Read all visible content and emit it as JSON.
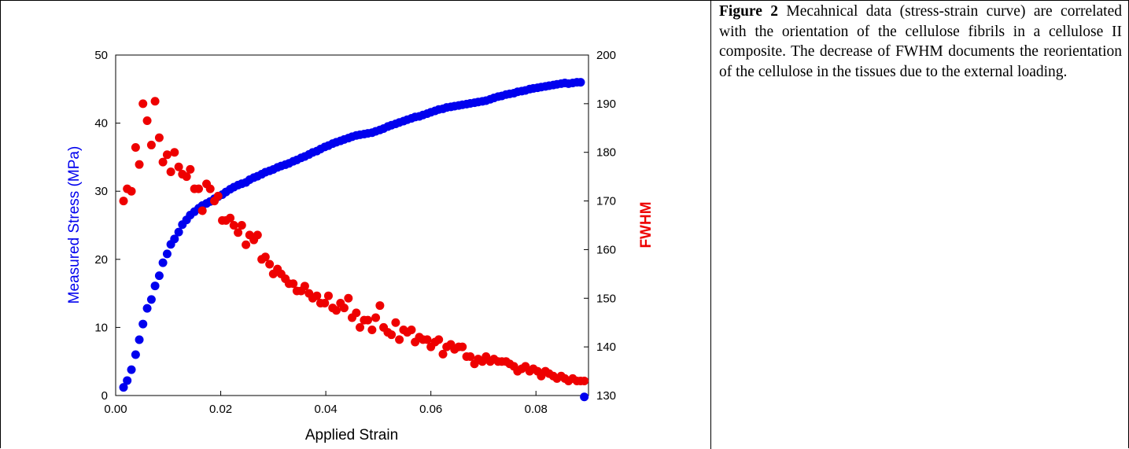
{
  "caption": {
    "label": "Figure 2",
    "text": "Mecahnical data (stress-strain curve) are correlated with the orientation of the cellulose fibrils in a cellulose II composite. The decrease of FWHM documents the reorientation of the cellulose in the tissues due to the external loading."
  },
  "colors": {
    "stress": "#0000ee",
    "fwhm": "#ee0000",
    "axes": "#000000"
  },
  "chart_data": {
    "type": "scatter",
    "xlabel": "Applied Strain",
    "ylabel_left": "Measured Stress (MPa)",
    "ylabel_right": "FWHM",
    "xlim": [
      0,
      0.09
    ],
    "ylim_left": [
      0,
      50
    ],
    "ylim_right": [
      130,
      200
    ],
    "xticks": [
      "0.00",
      "0.02",
      "0.04",
      "0.06",
      "0.08"
    ],
    "yticks_left": [
      "0",
      "10",
      "20",
      "30",
      "40",
      "50"
    ],
    "yticks_right": [
      "130",
      "140",
      "150",
      "160",
      "170",
      "180",
      "190",
      "200"
    ],
    "grid": false,
    "legend": "none",
    "series": [
      {
        "axis": "left",
        "points": [
          [
            0.0015,
            1.2
          ],
          [
            0.0022,
            2.2
          ],
          [
            0.003,
            3.8
          ],
          [
            0.0038,
            6
          ],
          [
            0.0045,
            8.2
          ],
          [
            0.0052,
            10.5
          ],
          [
            0.006,
            12.8
          ],
          [
            0.0068,
            14.1
          ],
          [
            0.0075,
            16.1
          ],
          [
            0.0083,
            17.6
          ],
          [
            0.009,
            19.5
          ],
          [
            0.0098,
            20.8
          ],
          [
            0.0105,
            22.2
          ],
          [
            0.0112,
            23
          ],
          [
            0.012,
            24
          ],
          [
            0.0127,
            25.1
          ],
          [
            0.0135,
            25.8
          ],
          [
            0.0142,
            26.5
          ],
          [
            0.015,
            27
          ],
          [
            0.0158,
            27.5
          ],
          [
            0.0165,
            27.9
          ],
          [
            0.0173,
            28.2
          ],
          [
            0.018,
            28.5
          ],
          [
            0.0188,
            28.9
          ],
          [
            0.0195,
            29.2
          ],
          [
            0.0203,
            29.5
          ],
          [
            0.021,
            29.9
          ],
          [
            0.0218,
            30.3
          ],
          [
            0.0225,
            30.6
          ],
          [
            0.0233,
            30.9
          ],
          [
            0.024,
            31.1
          ],
          [
            0.0248,
            31.3
          ],
          [
            0.0255,
            31.7
          ],
          [
            0.0263,
            32
          ],
          [
            0.027,
            32.2
          ],
          [
            0.0278,
            32.5
          ],
          [
            0.0285,
            32.8
          ],
          [
            0.0293,
            33
          ],
          [
            0.03,
            33.2
          ],
          [
            0.0308,
            33.5
          ],
          [
            0.0315,
            33.7
          ],
          [
            0.0323,
            33.9
          ],
          [
            0.033,
            34.1
          ],
          [
            0.0338,
            34.4
          ],
          [
            0.0345,
            34.6
          ],
          [
            0.0353,
            34.9
          ],
          [
            0.036,
            35.1
          ],
          [
            0.0368,
            35.4
          ],
          [
            0.0375,
            35.7
          ],
          [
            0.0383,
            35.9
          ],
          [
            0.039,
            36.2
          ],
          [
            0.0398,
            36.5
          ],
          [
            0.0405,
            36.7
          ],
          [
            0.0413,
            37
          ],
          [
            0.042,
            37.2
          ],
          [
            0.0428,
            37.4
          ],
          [
            0.0435,
            37.6
          ],
          [
            0.0443,
            37.8
          ],
          [
            0.045,
            38
          ],
          [
            0.0458,
            38.2
          ],
          [
            0.0465,
            38.3
          ],
          [
            0.0473,
            38.4
          ],
          [
            0.048,
            38.5
          ],
          [
            0.0488,
            38.6
          ],
          [
            0.0495,
            38.8
          ],
          [
            0.0503,
            39
          ],
          [
            0.051,
            39.2
          ],
          [
            0.0518,
            39.5
          ],
          [
            0.0525,
            39.7
          ],
          [
            0.0533,
            39.9
          ],
          [
            0.054,
            40.1
          ],
          [
            0.0548,
            40.3
          ],
          [
            0.0555,
            40.5
          ],
          [
            0.0563,
            40.7
          ],
          [
            0.057,
            40.9
          ],
          [
            0.0578,
            41
          ],
          [
            0.0585,
            41.2
          ],
          [
            0.0593,
            41.4
          ],
          [
            0.06,
            41.6
          ],
          [
            0.0608,
            41.8
          ],
          [
            0.0615,
            42
          ],
          [
            0.0623,
            42.1
          ],
          [
            0.063,
            42.3
          ],
          [
            0.0638,
            42.4
          ],
          [
            0.0645,
            42.5
          ],
          [
            0.0653,
            42.6
          ],
          [
            0.066,
            42.7
          ],
          [
            0.0668,
            42.8
          ],
          [
            0.0675,
            42.9
          ],
          [
            0.0683,
            43
          ],
          [
            0.069,
            43.1
          ],
          [
            0.0698,
            43.2
          ],
          [
            0.0705,
            43.3
          ],
          [
            0.0713,
            43.5
          ],
          [
            0.072,
            43.7
          ],
          [
            0.0728,
            43.9
          ],
          [
            0.0735,
            44
          ],
          [
            0.0743,
            44.2
          ],
          [
            0.075,
            44.3
          ],
          [
            0.0758,
            44.4
          ],
          [
            0.0765,
            44.6
          ],
          [
            0.0773,
            44.7
          ],
          [
            0.078,
            44.8
          ],
          [
            0.0788,
            45
          ],
          [
            0.0795,
            45.1
          ],
          [
            0.0803,
            45.2
          ],
          [
            0.081,
            45.3
          ],
          [
            0.0818,
            45.4
          ],
          [
            0.0825,
            45.5
          ],
          [
            0.0833,
            45.6
          ],
          [
            0.084,
            45.7
          ],
          [
            0.0848,
            45.8
          ],
          [
            0.0855,
            45.9
          ],
          [
            0.0862,
            45.8
          ],
          [
            0.087,
            45.9
          ],
          [
            0.0878,
            46
          ],
          [
            0.0885,
            46
          ],
          [
            0.0892,
            -0.2
          ]
        ]
      },
      {
        "axis": "right",
        "points": [
          [
            0.0015,
            170
          ],
          [
            0.0022,
            172.5
          ],
          [
            0.003,
            172
          ],
          [
            0.0038,
            181
          ],
          [
            0.0045,
            177.5
          ],
          [
            0.0052,
            190
          ],
          [
            0.006,
            186.5
          ],
          [
            0.0068,
            181.5
          ],
          [
            0.0075,
            190.5
          ],
          [
            0.0083,
            183
          ],
          [
            0.009,
            178
          ],
          [
            0.0098,
            179.5
          ],
          [
            0.0105,
            176
          ],
          [
            0.0112,
            180
          ],
          [
            0.012,
            177
          ],
          [
            0.0127,
            175.5
          ],
          [
            0.0135,
            175
          ],
          [
            0.0142,
            176.5
          ],
          [
            0.015,
            172.5
          ],
          [
            0.0158,
            172.5
          ],
          [
            0.0165,
            168
          ],
          [
            0.0173,
            173.5
          ],
          [
            0.018,
            172.5
          ],
          [
            0.0188,
            170
          ],
          [
            0.0195,
            171
          ],
          [
            0.0203,
            166
          ],
          [
            0.021,
            166
          ],
          [
            0.0218,
            166.5
          ],
          [
            0.0225,
            165
          ],
          [
            0.0233,
            163.5
          ],
          [
            0.024,
            165
          ],
          [
            0.0248,
            161
          ],
          [
            0.0255,
            163
          ],
          [
            0.0263,
            162
          ],
          [
            0.027,
            163
          ],
          [
            0.0278,
            158
          ],
          [
            0.0285,
            158.5
          ],
          [
            0.0293,
            157
          ],
          [
            0.03,
            155
          ],
          [
            0.0308,
            156
          ],
          [
            0.0315,
            155
          ],
          [
            0.0323,
            154
          ],
          [
            0.033,
            153
          ],
          [
            0.0338,
            153
          ],
          [
            0.0345,
            151.5
          ],
          [
            0.0353,
            151.5
          ],
          [
            0.036,
            152.5
          ],
          [
            0.0368,
            151
          ],
          [
            0.0375,
            150
          ],
          [
            0.0383,
            150.5
          ],
          [
            0.039,
            149
          ],
          [
            0.0398,
            149
          ],
          [
            0.0405,
            150.5
          ],
          [
            0.0413,
            148
          ],
          [
            0.042,
            147.5
          ],
          [
            0.0428,
            149
          ],
          [
            0.0435,
            148
          ],
          [
            0.0443,
            150
          ],
          [
            0.045,
            146
          ],
          [
            0.0458,
            147
          ],
          [
            0.0465,
            144
          ],
          [
            0.0473,
            145.5
          ],
          [
            0.048,
            145.5
          ],
          [
            0.0488,
            143.5
          ],
          [
            0.0495,
            146
          ],
          [
            0.0503,
            148.5
          ],
          [
            0.051,
            144
          ],
          [
            0.0518,
            143
          ],
          [
            0.0525,
            142.5
          ],
          [
            0.0533,
            145
          ],
          [
            0.054,
            141.5
          ],
          [
            0.0548,
            143.5
          ],
          [
            0.0555,
            143
          ],
          [
            0.0563,
            143.5
          ],
          [
            0.057,
            141
          ],
          [
            0.0578,
            142
          ],
          [
            0.0585,
            141.5
          ],
          [
            0.0593,
            141.5
          ],
          [
            0.06,
            140
          ],
          [
            0.0608,
            141
          ],
          [
            0.0615,
            141.5
          ],
          [
            0.0623,
            138.5
          ],
          [
            0.063,
            140
          ],
          [
            0.0638,
            140.5
          ],
          [
            0.0645,
            139.5
          ],
          [
            0.0653,
            140
          ],
          [
            0.066,
            140
          ],
          [
            0.0668,
            138
          ],
          [
            0.0675,
            138
          ],
          [
            0.0683,
            136.5
          ],
          [
            0.069,
            137.5
          ],
          [
            0.0698,
            137
          ],
          [
            0.0705,
            138
          ],
          [
            0.0713,
            137
          ],
          [
            0.072,
            137.5
          ],
          [
            0.0728,
            137
          ],
          [
            0.0735,
            137
          ],
          [
            0.0743,
            137
          ],
          [
            0.075,
            136.5
          ],
          [
            0.0758,
            136
          ],
          [
            0.0765,
            135
          ],
          [
            0.0773,
            135.5
          ],
          [
            0.078,
            136
          ],
          [
            0.0788,
            135
          ],
          [
            0.0795,
            135.5
          ],
          [
            0.0803,
            135
          ],
          [
            0.081,
            134
          ],
          [
            0.0818,
            135
          ],
          [
            0.0825,
            134.5
          ],
          [
            0.0833,
            134
          ],
          [
            0.084,
            133.5
          ],
          [
            0.0848,
            134
          ],
          [
            0.0855,
            133.5
          ],
          [
            0.0862,
            133
          ],
          [
            0.087,
            133.5
          ],
          [
            0.0878,
            133
          ],
          [
            0.0885,
            133
          ],
          [
            0.0892,
            133
          ]
        ]
      }
    ]
  }
}
